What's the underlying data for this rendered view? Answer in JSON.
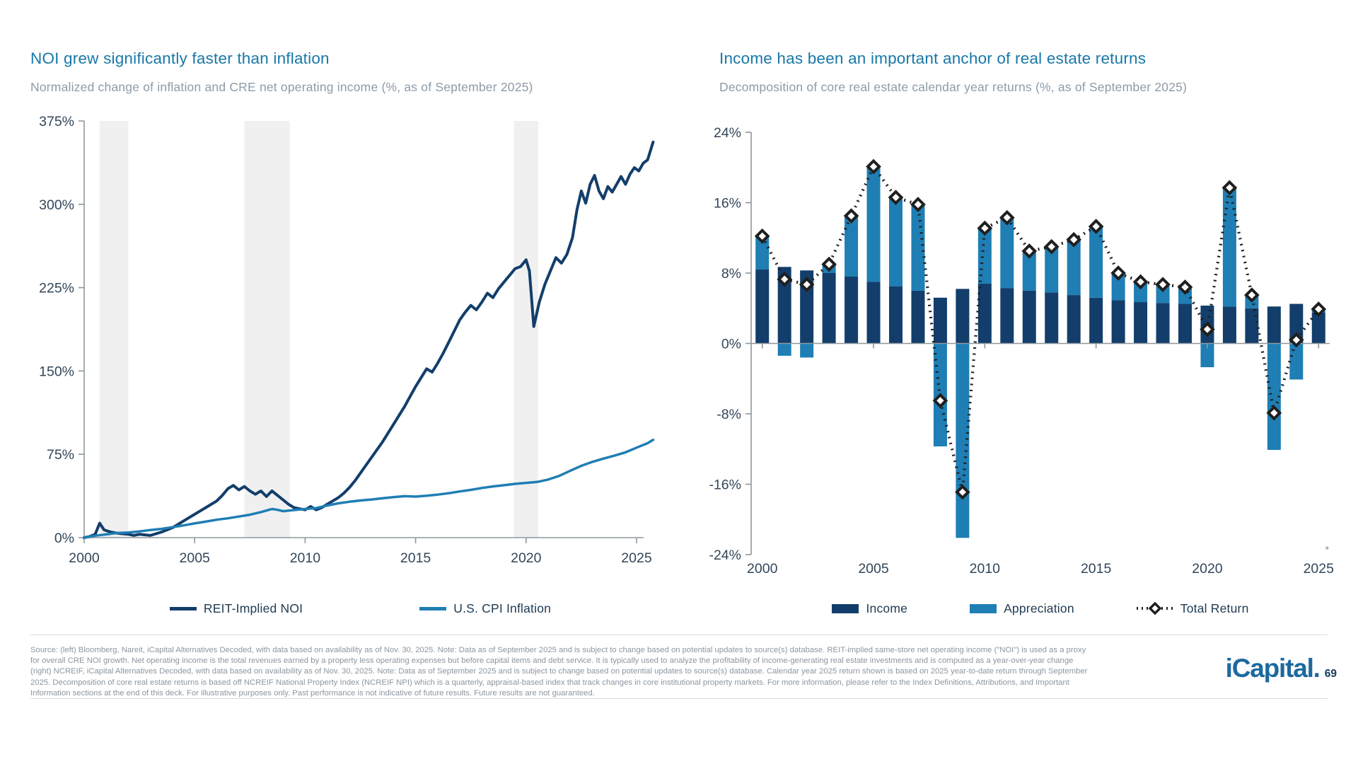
{
  "left_panel": {
    "title": "NOI grew significantly faster than inflation",
    "subtitle": "Normalized change of inflation and CRE net operating income (%, as of September 2025)",
    "legend": [
      {
        "label": "REIT-Implied NOI",
        "color": "#133E6B",
        "marker": "line"
      },
      {
        "label": "U.S. CPI Inflation",
        "color": "#1F7EB4",
        "marker": "line"
      }
    ]
  },
  "right_panel": {
    "title": "Income has been an important anchor of real estate returns",
    "subtitle": "Decomposition of core real estate calendar year returns (%, as of September 2025)",
    "legend": [
      {
        "label": "Income",
        "color": "#133E6B",
        "marker": "rect"
      },
      {
        "label": "Appreciation",
        "color": "#1F7EB4",
        "marker": "rect"
      },
      {
        "label": "Total Return",
        "color": "#1F1F1F",
        "marker": "dotted-diamond"
      }
    ],
    "axis_note": "*"
  },
  "chart_data": [
    {
      "type": "line",
      "title": "NOI grew significantly faster than inflation",
      "xlabel": "",
      "ylabel": "",
      "ylim": [
        0,
        375
      ],
      "xlim": [
        2000,
        2025.75
      ],
      "y_ticks": [
        375,
        300,
        225,
        150,
        75,
        0
      ],
      "y_suffix": "%",
      "x_ticks": [
        2000,
        2005,
        2010,
        2015,
        2020,
        2025
      ],
      "grid": false,
      "legend_position": "bottom",
      "recession_bands": [
        [
          2000.7,
          2002.0
        ],
        [
          2007.25,
          2009.3
        ],
        [
          2019.45,
          2020.55
        ]
      ],
      "series": [
        {
          "name": "REIT-Implied NOI",
          "color": "#133E6B",
          "width": 4,
          "points": [
            [
              2000,
              0
            ],
            [
              2000.25,
              1
            ],
            [
              2000.5,
              3
            ],
            [
              2000.7,
              13
            ],
            [
              2000.9,
              7
            ],
            [
              2001.2,
              5
            ],
            [
              2001.5,
              4
            ],
            [
              2001.75,
              3.5
            ],
            [
              2002,
              3
            ],
            [
              2002.25,
              2
            ],
            [
              2002.5,
              3
            ],
            [
              2002.75,
              2.5
            ],
            [
              2003,
              2
            ],
            [
              2003.25,
              3.5
            ],
            [
              2003.5,
              5
            ],
            [
              2003.75,
              7
            ],
            [
              2004,
              9
            ],
            [
              2004.25,
              12
            ],
            [
              2004.5,
              15
            ],
            [
              2004.75,
              18
            ],
            [
              2005,
              21
            ],
            [
              2005.25,
              24
            ],
            [
              2005.5,
              27
            ],
            [
              2005.75,
              30
            ],
            [
              2006,
              33
            ],
            [
              2006.25,
              38
            ],
            [
              2006.5,
              44
            ],
            [
              2006.75,
              47
            ],
            [
              2007,
              43
            ],
            [
              2007.25,
              46
            ],
            [
              2007.5,
              42
            ],
            [
              2007.75,
              39
            ],
            [
              2008,
              42
            ],
            [
              2008.25,
              37
            ],
            [
              2008.5,
              42
            ],
            [
              2008.75,
              38
            ],
            [
              2009,
              34
            ],
            [
              2009.25,
              30
            ],
            [
              2009.5,
              27
            ],
            [
              2009.75,
              26
            ],
            [
              2010,
              25
            ],
            [
              2010.25,
              28
            ],
            [
              2010.5,
              25
            ],
            [
              2010.75,
              27
            ],
            [
              2011,
              30
            ],
            [
              2011.25,
              33
            ],
            [
              2011.5,
              36
            ],
            [
              2011.75,
              40
            ],
            [
              2012,
              45
            ],
            [
              2012.25,
              51
            ],
            [
              2012.5,
              58
            ],
            [
              2012.75,
              65
            ],
            [
              2013,
              72
            ],
            [
              2013.25,
              79
            ],
            [
              2013.5,
              86
            ],
            [
              2013.75,
              94
            ],
            [
              2014,
              102
            ],
            [
              2014.25,
              110
            ],
            [
              2014.5,
              118
            ],
            [
              2014.75,
              127
            ],
            [
              2015,
              136
            ],
            [
              2015.25,
              144
            ],
            [
              2015.5,
              152
            ],
            [
              2015.75,
              149
            ],
            [
              2016,
              157
            ],
            [
              2016.25,
              166
            ],
            [
              2016.5,
              176
            ],
            [
              2016.75,
              186
            ],
            [
              2017,
              196
            ],
            [
              2017.25,
              203
            ],
            [
              2017.5,
              209
            ],
            [
              2017.75,
              205
            ],
            [
              2018,
              212
            ],
            [
              2018.25,
              220
            ],
            [
              2018.5,
              216
            ],
            [
              2018.75,
              224
            ],
            [
              2019,
              230
            ],
            [
              2019.25,
              236
            ],
            [
              2019.5,
              242
            ],
            [
              2019.75,
              244
            ],
            [
              2020,
              250
            ],
            [
              2020.15,
              240
            ],
            [
              2020.35,
              190
            ],
            [
              2020.6,
              212
            ],
            [
              2020.85,
              228
            ],
            [
              2021.1,
              240
            ],
            [
              2021.35,
              252
            ],
            [
              2021.6,
              247
            ],
            [
              2021.85,
              255
            ],
            [
              2022.1,
              270
            ],
            [
              2022.3,
              295
            ],
            [
              2022.5,
              312
            ],
            [
              2022.7,
              301
            ],
            [
              2022.9,
              318
            ],
            [
              2023.1,
              326
            ],
            [
              2023.3,
              312
            ],
            [
              2023.5,
              305
            ],
            [
              2023.7,
              316
            ],
            [
              2023.9,
              311
            ],
            [
              2024.1,
              318
            ],
            [
              2024.3,
              325
            ],
            [
              2024.5,
              318
            ],
            [
              2024.7,
              327
            ],
            [
              2024.9,
              333
            ],
            [
              2025.1,
              330
            ],
            [
              2025.3,
              337
            ],
            [
              2025.5,
              340
            ],
            [
              2025.75,
              356
            ]
          ]
        },
        {
          "name": "U.S. CPI Inflation",
          "color": "#1F7EB4",
          "width": 3.5,
          "points": [
            [
              2000,
              0
            ],
            [
              2000.5,
              1.7
            ],
            [
              2001,
              2.9
            ],
            [
              2001.5,
              4.2
            ],
            [
              2002,
              4.6
            ],
            [
              2002.5,
              5.6
            ],
            [
              2003,
              6.9
            ],
            [
              2003.5,
              7.9
            ],
            [
              2004,
              9.4
            ],
            [
              2004.5,
              11
            ],
            [
              2005,
              12.8
            ],
            [
              2005.5,
              14.4
            ],
            [
              2006,
              16.1
            ],
            [
              2006.5,
              17.4
            ],
            [
              2007,
              19
            ],
            [
              2007.5,
              20.6
            ],
            [
              2008,
              23
            ],
            [
              2008.5,
              25.8
            ],
            [
              2008.75,
              25
            ],
            [
              2009,
              23.8
            ],
            [
              2009.5,
              24.8
            ],
            [
              2010,
              25.8
            ],
            [
              2010.5,
              26.6
            ],
            [
              2011,
              28.9
            ],
            [
              2011.5,
              30.9
            ],
            [
              2012,
              32.3
            ],
            [
              2012.5,
              33.4
            ],
            [
              2013,
              34.3
            ],
            [
              2013.5,
              35.4
            ],
            [
              2014,
              36.4
            ],
            [
              2014.5,
              37.3
            ],
            [
              2015,
              36.9
            ],
            [
              2015.5,
              37.7
            ],
            [
              2016,
              38.7
            ],
            [
              2016.5,
              40
            ],
            [
              2017,
              41.6
            ],
            [
              2017.5,
              43
            ],
            [
              2018,
              44.7
            ],
            [
              2018.5,
              46.1
            ],
            [
              2019,
              47.2
            ],
            [
              2019.5,
              48.4
            ],
            [
              2020,
              49.3
            ],
            [
              2020.5,
              50.1
            ],
            [
              2021,
              52.3
            ],
            [
              2021.5,
              55.6
            ],
            [
              2022,
              60.2
            ],
            [
              2022.5,
              64.6
            ],
            [
              2023,
              68.2
            ],
            [
              2023.5,
              71.1
            ],
            [
              2024,
              73.8
            ],
            [
              2024.5,
              76.8
            ],
            [
              2025,
              81
            ],
            [
              2025.5,
              85
            ],
            [
              2025.75,
              88
            ]
          ]
        }
      ]
    },
    {
      "type": "bar",
      "title": "Income has been an important anchor of real estate returns",
      "xlabel": "",
      "ylabel": "",
      "ylim": [
        -24,
        24
      ],
      "y_ticks": [
        24,
        16,
        8,
        0,
        -8,
        -16,
        -24
      ],
      "y_suffix": "%",
      "x_ticks": [
        2000,
        2005,
        2010,
        2015,
        2020,
        2025
      ],
      "grid": false,
      "legend_position": "bottom",
      "categories": [
        2000,
        2001,
        2002,
        2003,
        2004,
        2005,
        2006,
        2007,
        2008,
        2009,
        2010,
        2011,
        2012,
        2013,
        2014,
        2015,
        2016,
        2017,
        2018,
        2019,
        2020,
        2021,
        2022,
        2023,
        2024,
        2025
      ],
      "series": [
        {
          "name": "Income",
          "type": "bar-stacked",
          "color": "#133E6B",
          "values": [
            8.4,
            8.7,
            8.3,
            8.0,
            7.6,
            7.0,
            6.5,
            6.0,
            5.2,
            6.2,
            6.8,
            6.3,
            6.0,
            5.8,
            5.5,
            5.2,
            4.9,
            4.7,
            4.6,
            4.5,
            4.3,
            4.2,
            4.0,
            4.2,
            4.5,
            3.5
          ]
        },
        {
          "name": "Appreciation",
          "type": "bar-stacked",
          "color": "#1F7EB4",
          "values": [
            3.8,
            -1.4,
            -1.6,
            1.0,
            6.9,
            13.1,
            10.1,
            9.8,
            -11.7,
            -22.1,
            6.3,
            8.0,
            4.5,
            5.2,
            6.3,
            8.1,
            3.1,
            2.3,
            2.1,
            1.9,
            -2.7,
            13.5,
            1.5,
            -12.1,
            -4.1,
            0.4
          ]
        },
        {
          "name": "Total Return",
          "type": "dotted-line-diamond",
          "color": "#1F1F1F",
          "values": [
            12.2,
            7.3,
            6.7,
            9.0,
            14.5,
            20.1,
            16.6,
            15.8,
            -6.5,
            -16.9,
            13.1,
            14.3,
            10.5,
            11.0,
            11.8,
            13.3,
            8.0,
            7.0,
            6.7,
            6.4,
            1.6,
            17.7,
            5.5,
            -7.9,
            0.4,
            3.9
          ]
        }
      ],
      "x_axis_note": "*"
    }
  ],
  "style": {
    "axis_color": "#8E979D",
    "tick_label_color": "#33465A",
    "band_color": "#F0F0F1",
    "note_color": "#8A949C"
  },
  "footer": {
    "lines": [
      "Source: (left) Bloomberg, Nareit, iCapital Alternatives Decoded, with data based on availability as of Nov. 30, 2025. Note: Data as of September 2025 and is subject to change based on potential updates to source(s) database. REIT-implied same-store net operating income (\"NOI\") is used as a proxy",
      "for overall CRE NOI growth. Net operating income is the total revenues earned by a property less operating expenses but before capital items and debt service. It is typically used to analyze the profitability of income-generating real estate investments and is computed as a year-over-year change",
      "(right) NCREIF, iCapital Alternatives Decoded, with data based on availability as of Nov. 30, 2025. Note: Data as of September 2025 and is subject to change based on potential updates to source(s) database. Calendar year 2025 return shown is based on 2025 year-to-date return through September",
      "2025. Decomposition of core real estate returns is based off NCREIF National Property Index (NCREIF NPI) which is a quarterly, appraisal-based index that track changes in core institutional property markets. For more information, please refer to the Index Definitions, Attributions, and Important",
      "Information sections at the end of this deck. For illustrative purposes only. Past performance is not indicative of future results. Future results are not guaranteed."
    ],
    "logo": "iCapital.",
    "page_number": "69"
  }
}
